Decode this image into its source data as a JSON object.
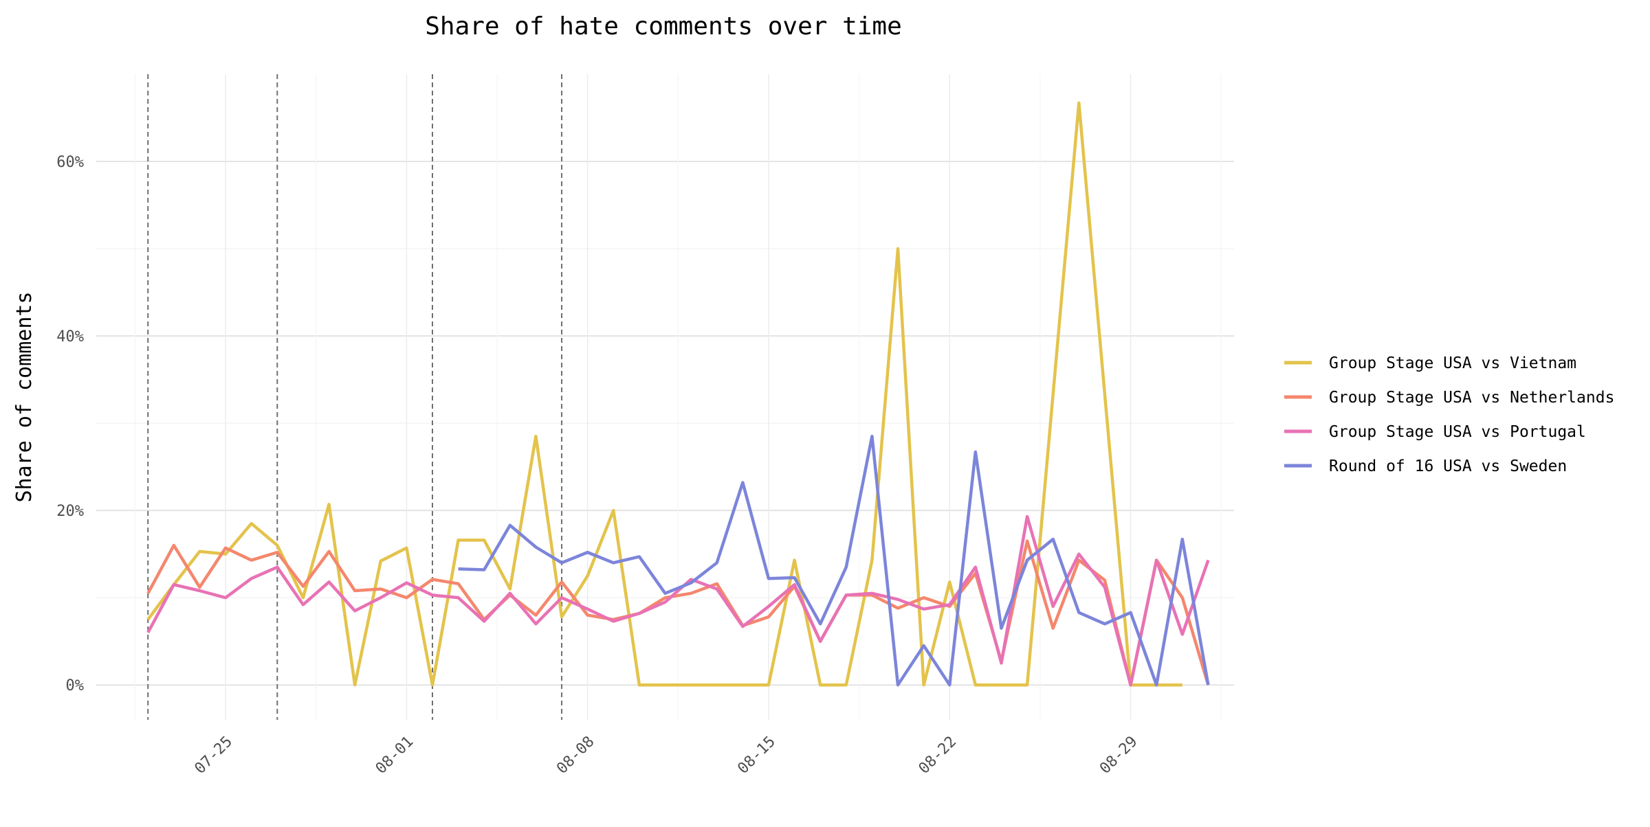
{
  "chart_data": {
    "type": "line",
    "title": "Share of hate comments over time",
    "xlabel": "",
    "ylabel": "Share of comments",
    "x_start": "2023-07-22",
    "xlim": [
      "2023-07-20",
      "2023-09-02"
    ],
    "ylim": [
      -0.04,
      0.7
    ],
    "y_ticks": [
      0,
      0.2,
      0.4,
      0.6
    ],
    "y_tick_labels": [
      "0%",
      "20%",
      "40%",
      "60%"
    ],
    "x_ticks": [
      "2023-07-25",
      "2023-08-01",
      "2023-08-08",
      "2023-08-15",
      "2023-08-22",
      "2023-08-29"
    ],
    "x_tick_labels": [
      "07-25",
      "08-01",
      "08-08",
      "08-15",
      "08-22",
      "08-29"
    ],
    "vlines": [
      "2023-07-22",
      "2023-07-27",
      "2023-08-02",
      "2023-08-07"
    ],
    "grid": true,
    "legend_position": "right",
    "series": [
      {
        "name": "Group Stage USA vs Vietnam",
        "color": "#E3C34B",
        "start_offset": 0,
        "values": [
          0.075,
          0.115,
          0.153,
          0.15,
          0.185,
          0.16,
          0.1,
          0.207,
          0.0,
          0.142,
          0.157,
          0.0,
          0.166,
          0.166,
          0.11,
          0.285,
          0.078,
          0.125,
          0.2,
          0.0,
          0.0,
          0.0,
          0.0,
          0.0,
          0.0,
          0.143,
          0.0,
          0.0,
          0.143,
          0.5,
          0.0,
          0.118,
          0.0,
          0.0,
          0.0,
          0.333,
          0.667,
          0.333,
          0.0,
          0.0,
          0.0
        ]
      },
      {
        "name": "Group Stage USA vs Netherlands",
        "color": "#F4876D",
        "start_offset": 0,
        "values": [
          0.105,
          0.16,
          0.112,
          0.157,
          0.143,
          0.152,
          0.113,
          0.153,
          0.108,
          0.11,
          0.1,
          0.121,
          0.116,
          0.075,
          0.103,
          0.08,
          0.118,
          0.08,
          0.075,
          0.082,
          0.1,
          0.105,
          0.116,
          0.068,
          0.078,
          0.113,
          0.05,
          0.103,
          0.103,
          0.088,
          0.1,
          0.09,
          0.128,
          0.027,
          0.165,
          0.065,
          0.143,
          0.12,
          0.0,
          0.143,
          0.1,
          0.0
        ]
      },
      {
        "name": "Group Stage USA vs Portugal",
        "color": "#E872B4",
        "start_offset": 0,
        "values": [
          0.06,
          0.115,
          0.108,
          0.1,
          0.122,
          0.135,
          0.092,
          0.118,
          0.085,
          0.1,
          0.117,
          0.103,
          0.1,
          0.073,
          0.105,
          0.07,
          0.1,
          0.087,
          0.073,
          0.082,
          0.095,
          0.121,
          0.11,
          0.067,
          0.09,
          0.115,
          0.05,
          0.103,
          0.105,
          0.098,
          0.087,
          0.092,
          0.135,
          0.025,
          0.193,
          0.09,
          0.15,
          0.112,
          0.0,
          0.143,
          0.058,
          0.143
        ]
      },
      {
        "name": "Round of 16 USA vs Sweden",
        "color": "#7C85DA",
        "start_offset": 12,
        "values": [
          0.133,
          0.132,
          0.183,
          0.158,
          0.14,
          0.152,
          0.14,
          0.147,
          0.105,
          0.117,
          0.14,
          0.232,
          0.122,
          0.123,
          0.07,
          0.135,
          0.285,
          0.0,
          0.045,
          0.0,
          0.267,
          0.065,
          0.143,
          0.167,
          0.083,
          0.07,
          0.083,
          0.0,
          0.167,
          0.0
        ]
      }
    ]
  }
}
